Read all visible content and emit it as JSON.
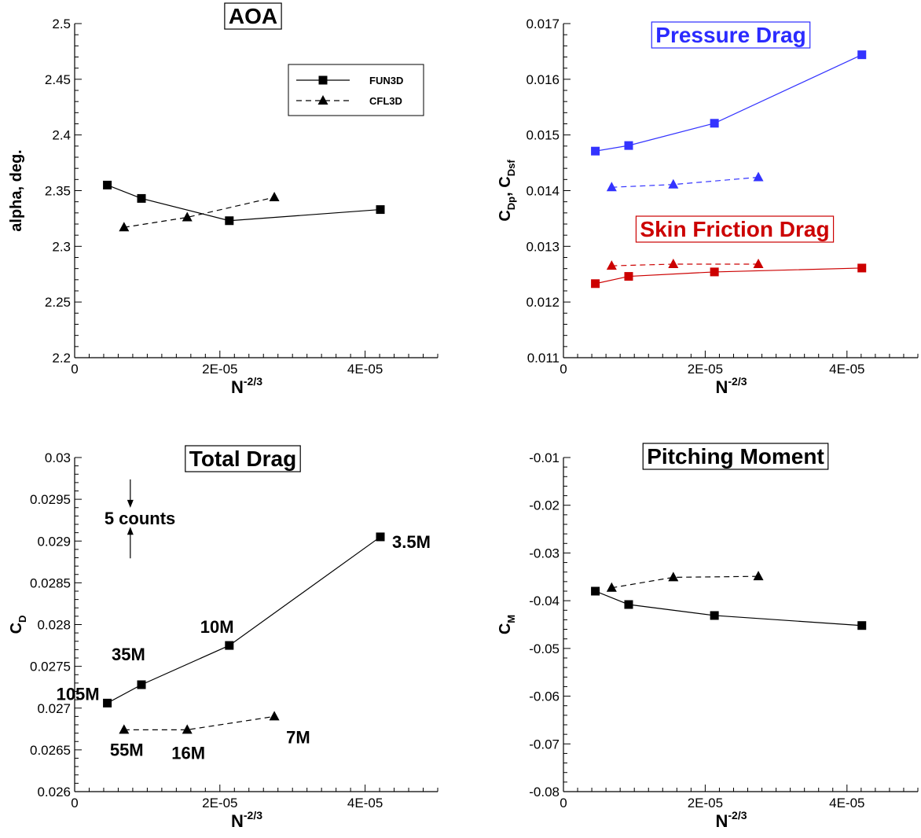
{
  "chart_data": [
    {
      "type": "line",
      "title": "AOA",
      "xlabel_base": "N",
      "xlabel_exp": "-2/3",
      "ylabel": "alpha, deg.",
      "xlim": [
        0,
        5e-05
      ],
      "ylim": [
        2.2,
        2.5
      ],
      "xticks": [
        {
          "v": 0,
          "t": "0"
        },
        {
          "v": 2e-05,
          "t": "2E-05"
        },
        {
          "v": 4e-05,
          "t": "4E-05"
        }
      ],
      "yticks": [
        {
          "v": 2.2,
          "t": "2.2"
        },
        {
          "v": 2.25,
          "t": "2.25"
        },
        {
          "v": 2.3,
          "t": "2.3"
        },
        {
          "v": 2.35,
          "t": "2.35"
        },
        {
          "v": 2.4,
          "t": "2.4"
        },
        {
          "v": 2.45,
          "t": "2.45"
        },
        {
          "v": 2.5,
          "t": "2.5"
        }
      ],
      "legend": {
        "position": "top-right",
        "entries": [
          "FUN3D",
          "CFL3D"
        ]
      },
      "series": [
        {
          "name": "FUN3D",
          "color": "#000000",
          "dash": "solid",
          "marker": "square",
          "x": [
            4.5e-06,
            9.2e-06,
            2.13e-05,
            4.21e-05
          ],
          "y": [
            2.355,
            2.343,
            2.323,
            2.333
          ]
        },
        {
          "name": "CFL3D",
          "color": "#000000",
          "dash": "dashed",
          "marker": "triangle",
          "x": [
            6.8e-06,
            1.55e-05,
            2.75e-05
          ],
          "y": [
            2.317,
            2.326,
            2.344
          ]
        }
      ]
    },
    {
      "type": "line",
      "title": "Pressure Drag",
      "title_color": "#2b2bff",
      "title2": "Skin Friction Drag",
      "title2_color": "#cc0000",
      "xlabel_base": "N",
      "xlabel_exp": "-2/3",
      "ylabel_parts": [
        {
          "base": "C",
          "sub": "Dp"
        },
        {
          "sep": ", "
        },
        {
          "base": "C",
          "sub": "Dsf"
        }
      ],
      "xlim": [
        0,
        5e-05
      ],
      "ylim": [
        0.011,
        0.017
      ],
      "xticks": [
        {
          "v": 0,
          "t": "0"
        },
        {
          "v": 2e-05,
          "t": "2E-05"
        },
        {
          "v": 4e-05,
          "t": "4E-05"
        }
      ],
      "yticks": [
        {
          "v": 0.011,
          "t": "0.011"
        },
        {
          "v": 0.012,
          "t": "0.012"
        },
        {
          "v": 0.013,
          "t": "0.013"
        },
        {
          "v": 0.014,
          "t": "0.014"
        },
        {
          "v": 0.015,
          "t": "0.015"
        },
        {
          "v": 0.016,
          "t": "0.016"
        },
        {
          "v": 0.017,
          "t": "0.017"
        }
      ],
      "series": [
        {
          "color": "#3333ff",
          "dash": "solid",
          "marker": "square",
          "x": [
            4.5e-06,
            9.2e-06,
            2.13e-05,
            4.21e-05
          ],
          "y": [
            0.01471,
            0.01481,
            0.01521,
            0.01644
          ]
        },
        {
          "color": "#3333ff",
          "dash": "dashed",
          "marker": "triangle",
          "x": [
            6.8e-06,
            1.55e-05,
            2.75e-05
          ],
          "y": [
            0.01406,
            0.01411,
            0.01424
          ]
        },
        {
          "color": "#cc0000",
          "dash": "dashed",
          "marker": "triangle",
          "x": [
            6.8e-06,
            1.55e-05,
            2.75e-05
          ],
          "y": [
            0.01265,
            0.01268,
            0.01268
          ]
        },
        {
          "color": "#cc0000",
          "dash": "solid",
          "marker": "square",
          "x": [
            4.5e-06,
            9.2e-06,
            2.13e-05,
            4.21e-05
          ],
          "y": [
            0.01233,
            0.01246,
            0.01254,
            0.01261
          ]
        }
      ]
    },
    {
      "type": "line",
      "title": "Total Drag",
      "xlabel_base": "N",
      "xlabel_exp": "-2/3",
      "ylabel_parts": [
        {
          "base": "C",
          "sub": "D"
        }
      ],
      "xlim": [
        0,
        5e-05
      ],
      "ylim": [
        0.026,
        0.03
      ],
      "xticks": [
        {
          "v": 0,
          "t": "0"
        },
        {
          "v": 2e-05,
          "t": "2E-05"
        },
        {
          "v": 4e-05,
          "t": "4E-05"
        }
      ],
      "yticks": [
        {
          "v": 0.026,
          "t": "0.026"
        },
        {
          "v": 0.0265,
          "t": "0.0265"
        },
        {
          "v": 0.027,
          "t": "0.027"
        },
        {
          "v": 0.0275,
          "t": "0.0275"
        },
        {
          "v": 0.028,
          "t": "0.028"
        },
        {
          "v": 0.0285,
          "t": "0.0285"
        },
        {
          "v": 0.029,
          "t": "0.029"
        },
        {
          "v": 0.0295,
          "t": "0.0295"
        },
        {
          "v": 0.03,
          "t": "0.03"
        }
      ],
      "series": [
        {
          "name": "FUN3D",
          "color": "#000000",
          "dash": "solid",
          "marker": "square",
          "x": [
            4.5e-06,
            9.2e-06,
            2.13e-05,
            4.21e-05
          ],
          "y": [
            0.02706,
            0.02728,
            0.02775,
            0.02905
          ]
        },
        {
          "name": "CFL3D",
          "color": "#000000",
          "dash": "dashed",
          "marker": "triangle",
          "x": [
            6.8e-06,
            1.55e-05,
            2.75e-05
          ],
          "y": [
            0.02674,
            0.02674,
            0.0269
          ]
        }
      ],
      "annotations": [
        {
          "text": "105M",
          "x": 4.5e-06,
          "y": 0.02706
        },
        {
          "text": "35M",
          "x": 9.2e-06,
          "y": 0.02728
        },
        {
          "text": "10M",
          "x": 2.13e-05,
          "y": 0.02775
        },
        {
          "text": "3.5M",
          "x": 4.21e-05,
          "y": 0.02905
        },
        {
          "text": "55M",
          "x": 6.8e-06,
          "y": 0.02674
        },
        {
          "text": "16M",
          "x": 1.55e-05,
          "y": 0.02674
        },
        {
          "text": "7M",
          "x": 2.75e-05,
          "y": 0.0269
        }
      ],
      "bracket": {
        "text": "5 counts",
        "x": 5.5e-06,
        "y_top": 0.02955,
        "y_bottom": 0.029
      }
    },
    {
      "type": "line",
      "title": "Pitching Moment",
      "xlabel_base": "N",
      "xlabel_exp": "-2/3",
      "ylabel_parts": [
        {
          "base": "C",
          "sub": "M"
        }
      ],
      "xlim": [
        0,
        5e-05
      ],
      "ylim": [
        -0.08,
        -0.01
      ],
      "xticks": [
        {
          "v": 0,
          "t": "0"
        },
        {
          "v": 2e-05,
          "t": "2E-05"
        },
        {
          "v": 4e-05,
          "t": "4E-05"
        }
      ],
      "yticks": [
        {
          "v": -0.08,
          "t": "-0.08"
        },
        {
          "v": -0.07,
          "t": "-0.07"
        },
        {
          "v": -0.06,
          "t": "-0.06"
        },
        {
          "v": -0.05,
          "t": "-0.05"
        },
        {
          "v": -0.04,
          "t": "-0.04"
        },
        {
          "v": -0.03,
          "t": "-0.03"
        },
        {
          "v": -0.02,
          "t": "-0.02"
        },
        {
          "v": -0.01,
          "t": "-0.01"
        }
      ],
      "series": [
        {
          "name": "FUN3D",
          "color": "#000000",
          "dash": "solid",
          "marker": "square",
          "x": [
            4.5e-06,
            9.2e-06,
            2.13e-05,
            4.21e-05
          ],
          "y": [
            -0.038,
            -0.0408,
            -0.0431,
            -0.0452
          ]
        },
        {
          "name": "CFL3D",
          "color": "#000000",
          "dash": "dashed",
          "marker": "triangle",
          "x": [
            6.8e-06,
            1.55e-05,
            2.75e-05
          ],
          "y": [
            -0.0373,
            -0.0351,
            -0.0349
          ]
        }
      ]
    }
  ]
}
